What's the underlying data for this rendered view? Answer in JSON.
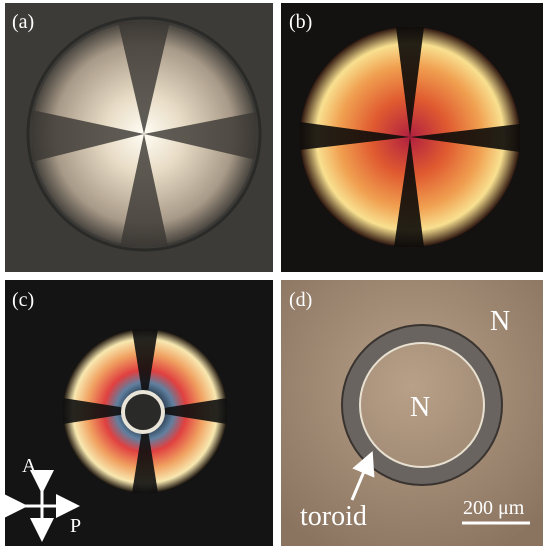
{
  "panels": [
    {
      "label": "(a)"
    },
    {
      "label": "(b)"
    },
    {
      "label": "(c)",
      "analyzer": "A",
      "polarizer": "P"
    },
    {
      "label": "(d)",
      "outer_phase": "N",
      "inner_phase": "N",
      "annotation": "toroid",
      "scale_bar": "200 μm"
    }
  ]
}
